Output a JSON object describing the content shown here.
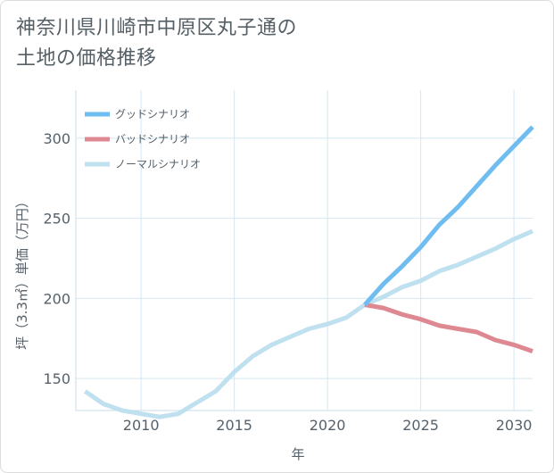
{
  "title": {
    "line1": "神奈川県川崎市中原区丸子通の",
    "line2": "土地の価格推移"
  },
  "chart_data": {
    "type": "line",
    "xlabel": "年",
    "ylabel": "坪（3.3㎡）単価（万円）",
    "xlim": [
      2006.5,
      2031
    ],
    "ylim": [
      130,
      330
    ],
    "x_ticks": [
      2010,
      2015,
      2020,
      2025,
      2030
    ],
    "y_ticks": [
      150,
      200,
      250,
      300
    ],
    "grid": true,
    "legend_position": "top-left",
    "series": [
      {
        "name": "グッドシナリオ",
        "color": "#6fbdf0",
        "x": [
          2022,
          2023,
          2024,
          2025,
          2026,
          2027,
          2028,
          2029,
          2030,
          2031
        ],
        "y": [
          196,
          209,
          220,
          232,
          246,
          257,
          270,
          283,
          295,
          307
        ]
      },
      {
        "name": "バッドシナリオ",
        "color": "#de8891",
        "x": [
          2022,
          2023,
          2024,
          2025,
          2026,
          2027,
          2028,
          2029,
          2030,
          2031
        ],
        "y": [
          196,
          194,
          190,
          187,
          183,
          181,
          179,
          174,
          171,
          167
        ]
      },
      {
        "name": "ノーマルシナリオ",
        "color": "#bfe0ef",
        "x": [
          2007,
          2008,
          2009,
          2010,
          2011,
          2012,
          2013,
          2014,
          2015,
          2016,
          2017,
          2018,
          2019,
          2020,
          2021,
          2022,
          2023,
          2024,
          2025,
          2026,
          2027,
          2028,
          2029,
          2030,
          2031
        ],
        "y": [
          142,
          134,
          130,
          128,
          126,
          128,
          135,
          142,
          154,
          164,
          171,
          176,
          181,
          184,
          188,
          196,
          201,
          207,
          211,
          217,
          221,
          226,
          231,
          237,
          242
        ]
      }
    ]
  }
}
